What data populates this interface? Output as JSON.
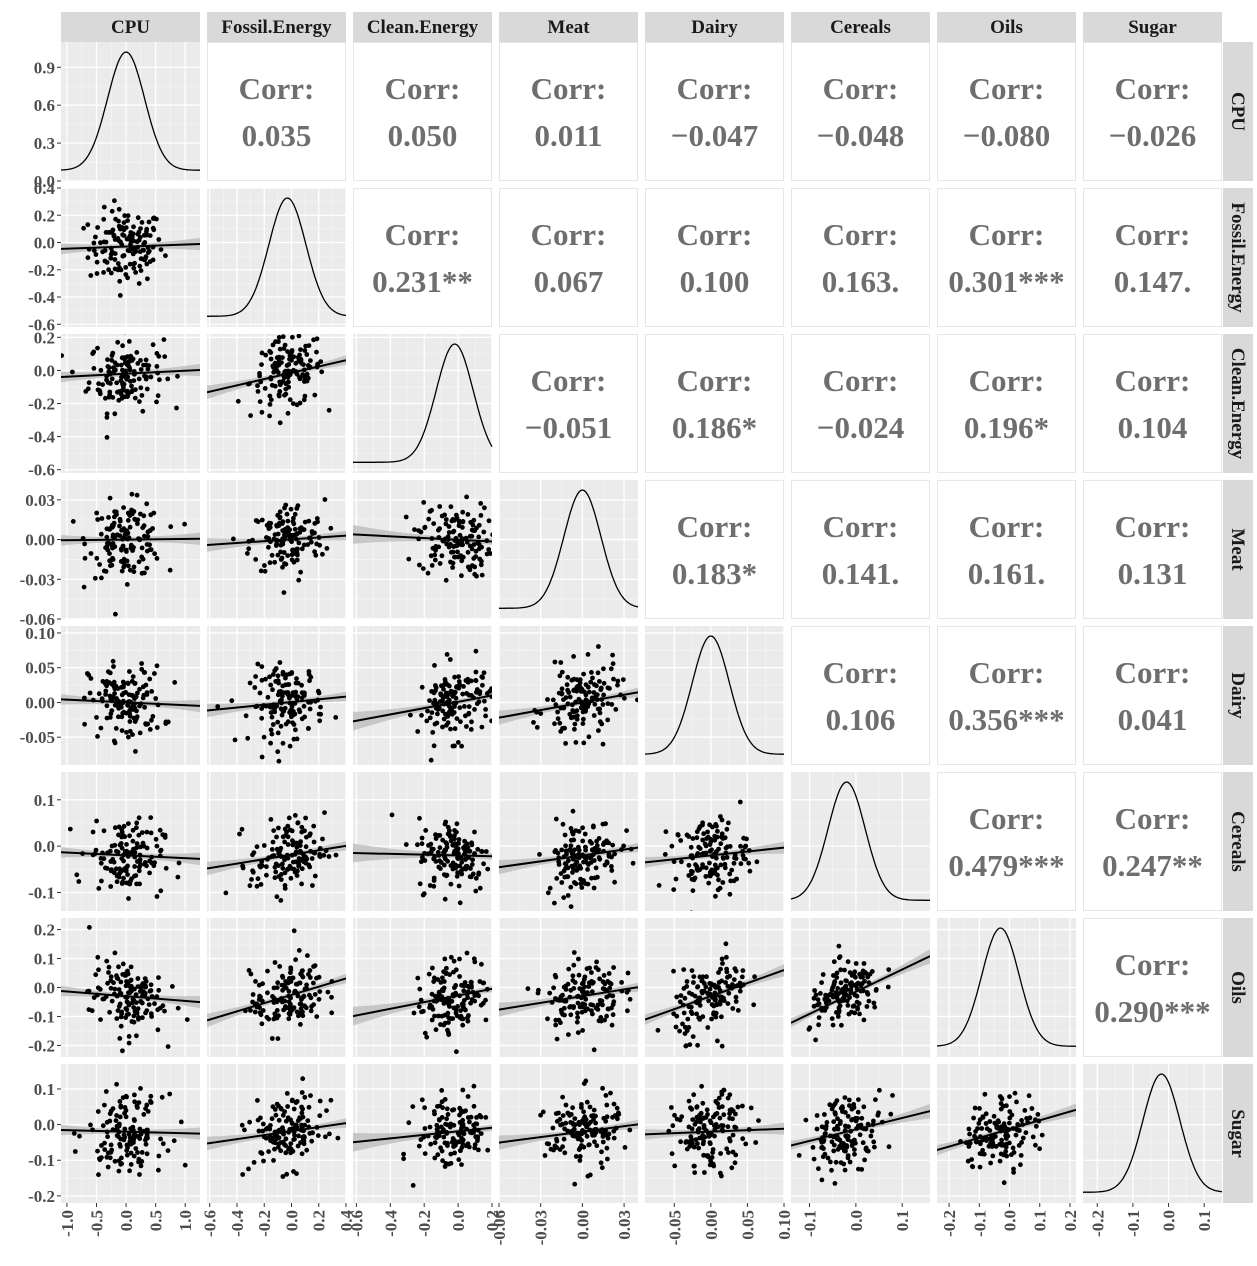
{
  "chart_data": {
    "type": "scatter-matrix",
    "title": "",
    "variables": [
      "CPU",
      "Fossil.Energy",
      "Clean.Energy",
      "Meat",
      "Dairy",
      "Cereals",
      "Oils",
      "Sugar"
    ],
    "corr_label": "Corr:",
    "correlations": [
      {
        "row": "CPU",
        "col": "Fossil.Energy",
        "value": "0.035"
      },
      {
        "row": "CPU",
        "col": "Clean.Energy",
        "value": "0.050"
      },
      {
        "row": "CPU",
        "col": "Meat",
        "value": "0.011"
      },
      {
        "row": "CPU",
        "col": "Dairy",
        "value": "−0.047"
      },
      {
        "row": "CPU",
        "col": "Cereals",
        "value": "−0.048"
      },
      {
        "row": "CPU",
        "col": "Oils",
        "value": "−0.080"
      },
      {
        "row": "CPU",
        "col": "Sugar",
        "value": "−0.026"
      },
      {
        "row": "Fossil.Energy",
        "col": "Clean.Energy",
        "value": "0.231**"
      },
      {
        "row": "Fossil.Energy",
        "col": "Meat",
        "value": "0.067"
      },
      {
        "row": "Fossil.Energy",
        "col": "Dairy",
        "value": "0.100"
      },
      {
        "row": "Fossil.Energy",
        "col": "Cereals",
        "value": "0.163."
      },
      {
        "row": "Fossil.Energy",
        "col": "Oils",
        "value": "0.301***"
      },
      {
        "row": "Fossil.Energy",
        "col": "Sugar",
        "value": "0.147."
      },
      {
        "row": "Clean.Energy",
        "col": "Meat",
        "value": "−0.051"
      },
      {
        "row": "Clean.Energy",
        "col": "Dairy",
        "value": "0.186*"
      },
      {
        "row": "Clean.Energy",
        "col": "Cereals",
        "value": "−0.024"
      },
      {
        "row": "Clean.Energy",
        "col": "Oils",
        "value": "0.196*"
      },
      {
        "row": "Clean.Energy",
        "col": "Sugar",
        "value": "0.104"
      },
      {
        "row": "Meat",
        "col": "Dairy",
        "value": "0.183*"
      },
      {
        "row": "Meat",
        "col": "Cereals",
        "value": "0.141."
      },
      {
        "row": "Meat",
        "col": "Oils",
        "value": "0.161."
      },
      {
        "row": "Meat",
        "col": "Sugar",
        "value": "0.131"
      },
      {
        "row": "Dairy",
        "col": "Cereals",
        "value": "0.106"
      },
      {
        "row": "Dairy",
        "col": "Oils",
        "value": "0.356***"
      },
      {
        "row": "Dairy",
        "col": "Sugar",
        "value": "0.041"
      },
      {
        "row": "Cereals",
        "col": "Oils",
        "value": "0.479***"
      },
      {
        "row": "Cereals",
        "col": "Sugar",
        "value": "0.247**"
      },
      {
        "row": "Oils",
        "col": "Sugar",
        "value": "0.290***"
      }
    ],
    "x_axes": [
      {
        "var": "CPU",
        "range": [
          -1.1,
          1.25
        ],
        "ticks": [
          -1.0,
          -0.5,
          0.0,
          0.5,
          1.0
        ],
        "labels": [
          "-1.0",
          "-0.5",
          "0.0",
          "0.5",
          "1.0"
        ]
      },
      {
        "var": "Fossil.Energy",
        "range": [
          -0.62,
          0.4
        ],
        "ticks": [
          -0.6,
          -0.4,
          -0.2,
          0.0,
          0.2,
          0.4
        ],
        "labels": [
          "-0.6",
          "-0.4",
          "-0.2",
          "0.0",
          "0.2",
          "0.4"
        ]
      },
      {
        "var": "Clean.Energy",
        "range": [
          -0.62,
          0.2
        ],
        "ticks": [
          -0.6,
          -0.4,
          -0.2,
          0.0,
          0.2
        ],
        "labels": [
          "-0.6",
          "-0.4",
          "-0.2",
          "0.0",
          "0.2"
        ]
      },
      {
        "var": "Meat",
        "range": [
          -0.06,
          0.04
        ],
        "ticks": [
          -0.06,
          -0.03,
          0.0,
          0.03
        ],
        "labels": [
          "-0.06",
          "-0.03",
          "0.00",
          "0.03"
        ]
      },
      {
        "var": "Dairy",
        "range": [
          -0.09,
          0.1
        ],
        "ticks": [
          -0.05,
          0.0,
          0.05,
          0.1
        ],
        "labels": [
          "-0.05",
          "0.00",
          "0.05",
          "0.10"
        ]
      },
      {
        "var": "Cereals",
        "range": [
          -0.14,
          0.16
        ],
        "ticks": [
          -0.1,
          0.0,
          0.1
        ],
        "labels": [
          "-0.1",
          "0.0",
          "0.1"
        ]
      },
      {
        "var": "Oils",
        "range": [
          -0.24,
          0.22
        ],
        "ticks": [
          -0.2,
          -0.1,
          0.0,
          0.1,
          0.2
        ],
        "labels": [
          "-0.2",
          "-0.1",
          "0.0",
          "0.1",
          "0.2"
        ]
      },
      {
        "var": "Sugar",
        "range": [
          -0.24,
          0.15
        ],
        "ticks": [
          -0.2,
          -0.1,
          0.0,
          0.1
        ],
        "labels": [
          "-0.2",
          "-0.1",
          "0.0",
          "0.1"
        ]
      }
    ],
    "y_axes": [
      {
        "var": "CPU",
        "range": [
          0.0,
          1.1
        ],
        "ticks": [
          0.0,
          0.3,
          0.6,
          0.9
        ],
        "labels": [
          "0.0",
          "0.3",
          "0.6",
          "0.9"
        ]
      },
      {
        "var": "Fossil.Energy",
        "range": [
          -0.62,
          0.4
        ],
        "ticks": [
          -0.6,
          -0.4,
          -0.2,
          0.0,
          0.2,
          0.4
        ],
        "labels": [
          "-0.6",
          "-0.4",
          "-0.2",
          "0.0",
          "0.2",
          "0.4"
        ]
      },
      {
        "var": "Clean.Energy",
        "range": [
          -0.62,
          0.22
        ],
        "ticks": [
          -0.6,
          -0.4,
          -0.2,
          0.0,
          0.2
        ],
        "labels": [
          "-0.6",
          "-0.4",
          "-0.2",
          "0.0",
          "0.2"
        ]
      },
      {
        "var": "Meat",
        "range": [
          -0.06,
          0.045
        ],
        "ticks": [
          -0.06,
          -0.03,
          0.0,
          0.03
        ],
        "labels": [
          "-0.06",
          "-0.03",
          "0.00",
          "0.03"
        ]
      },
      {
        "var": "Dairy",
        "range": [
          -0.09,
          0.11
        ],
        "ticks": [
          -0.05,
          0.0,
          0.05,
          0.1
        ],
        "labels": [
          "-0.05",
          "0.00",
          "0.05",
          "0.10"
        ]
      },
      {
        "var": "Cereals",
        "range": [
          -0.14,
          0.16
        ],
        "ticks": [
          -0.1,
          0.0,
          0.1
        ],
        "labels": [
          "-0.1",
          "0.0",
          "0.1"
        ]
      },
      {
        "var": "Oils",
        "range": [
          -0.24,
          0.24
        ],
        "ticks": [
          -0.2,
          -0.1,
          0.0,
          0.1,
          0.2
        ],
        "labels": [
          "-0.2",
          "-0.1",
          "0.0",
          "0.1",
          "0.2"
        ]
      },
      {
        "var": "Sugar",
        "range": [
          -0.22,
          0.17
        ],
        "ticks": [
          -0.2,
          -0.1,
          0.0,
          0.1
        ],
        "labels": [
          "-0.2",
          "-0.1",
          "0.0",
          "0.1"
        ]
      }
    ],
    "density_peaks": [
      0.0,
      -0.03,
      -0.02,
      0.0,
      0.0,
      -0.02,
      -0.03,
      -0.02
    ],
    "scatter_lower_triangle": "points with linear fit and grey confidence band",
    "colors": {
      "panel_bg": "#ebebeb",
      "grid_major": "#ffffff",
      "grid_minor": "#f4f4f4",
      "strip_bg": "#d9d9d9",
      "points": "#000000",
      "fit_line": "#000000",
      "band": "#bdbdbd",
      "corr_text": "#6e6e6e"
    }
  }
}
